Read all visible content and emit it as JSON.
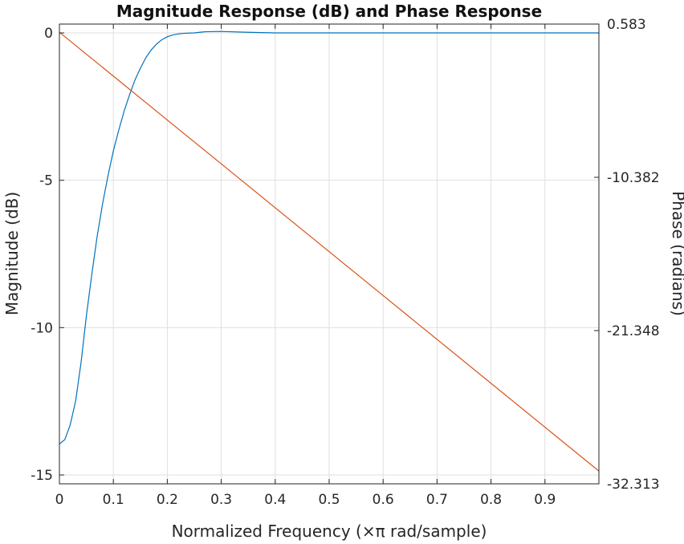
{
  "chart_data": {
    "type": "line",
    "title": "Magnitude Response (dB) and Phase Response",
    "xlabel": "Normalized Frequency (×π rad/sample)",
    "ylabel_left": "Magnitude (dB)",
    "ylabel_right": "Phase (radians)",
    "xlim": [
      0,
      1
    ],
    "ylim_left": [
      -15.3,
      0.3
    ],
    "ylim_right": [
      -32.313,
      0.583
    ],
    "x_ticks": [
      0,
      0.1,
      0.2,
      0.3,
      0.4,
      0.5,
      0.6,
      0.7,
      0.8,
      0.9
    ],
    "x_tick_labels": [
      "0",
      "0.1",
      "0.2",
      "0.3",
      "0.4",
      "0.5",
      "0.6",
      "0.7",
      "0.8",
      "0.9"
    ],
    "y_left_ticks": [
      0,
      -5,
      -10,
      -15
    ],
    "y_left_tick_labels": [
      "0",
      "-5",
      "-10",
      "-15"
    ],
    "y_right_ticks": [
      0.583,
      -10.382,
      -21.348,
      -32.313
    ],
    "y_right_tick_labels": [
      "0.583",
      "-10.382",
      "-21.348",
      "-32.313"
    ],
    "grid": true,
    "series": [
      {
        "name": "Magnitude (dB)",
        "axis": "left",
        "color": "#0072bd",
        "x": [
          0,
          0.01,
          0.02,
          0.03,
          0.04,
          0.05,
          0.06,
          0.07,
          0.08,
          0.09,
          0.1,
          0.11,
          0.12,
          0.13,
          0.14,
          0.15,
          0.16,
          0.17,
          0.18,
          0.19,
          0.2,
          0.21,
          0.22,
          0.23,
          0.24,
          0.25,
          0.26,
          0.27,
          0.3,
          0.35,
          0.4,
          0.5,
          0.6,
          0.7,
          0.8,
          0.9,
          1.0
        ],
        "y": [
          -13.95,
          -13.8,
          -13.3,
          -12.5,
          -11.2,
          -9.6,
          -8.2,
          -6.9,
          -5.8,
          -4.85,
          -4.0,
          -3.3,
          -2.65,
          -2.1,
          -1.6,
          -1.2,
          -0.85,
          -0.58,
          -0.38,
          -0.23,
          -0.13,
          -0.07,
          -0.035,
          -0.015,
          -0.006,
          0.0,
          0.02,
          0.04,
          0.05,
          0.02,
          0.0,
          0.0,
          0.0,
          0.0,
          0.0,
          0.0,
          0.0
        ]
      },
      {
        "name": "Phase (radians)",
        "axis": "right",
        "color": "#d95319",
        "x": [
          0,
          1.0
        ],
        "y": [
          0.0,
          -31.4
        ]
      }
    ]
  }
}
